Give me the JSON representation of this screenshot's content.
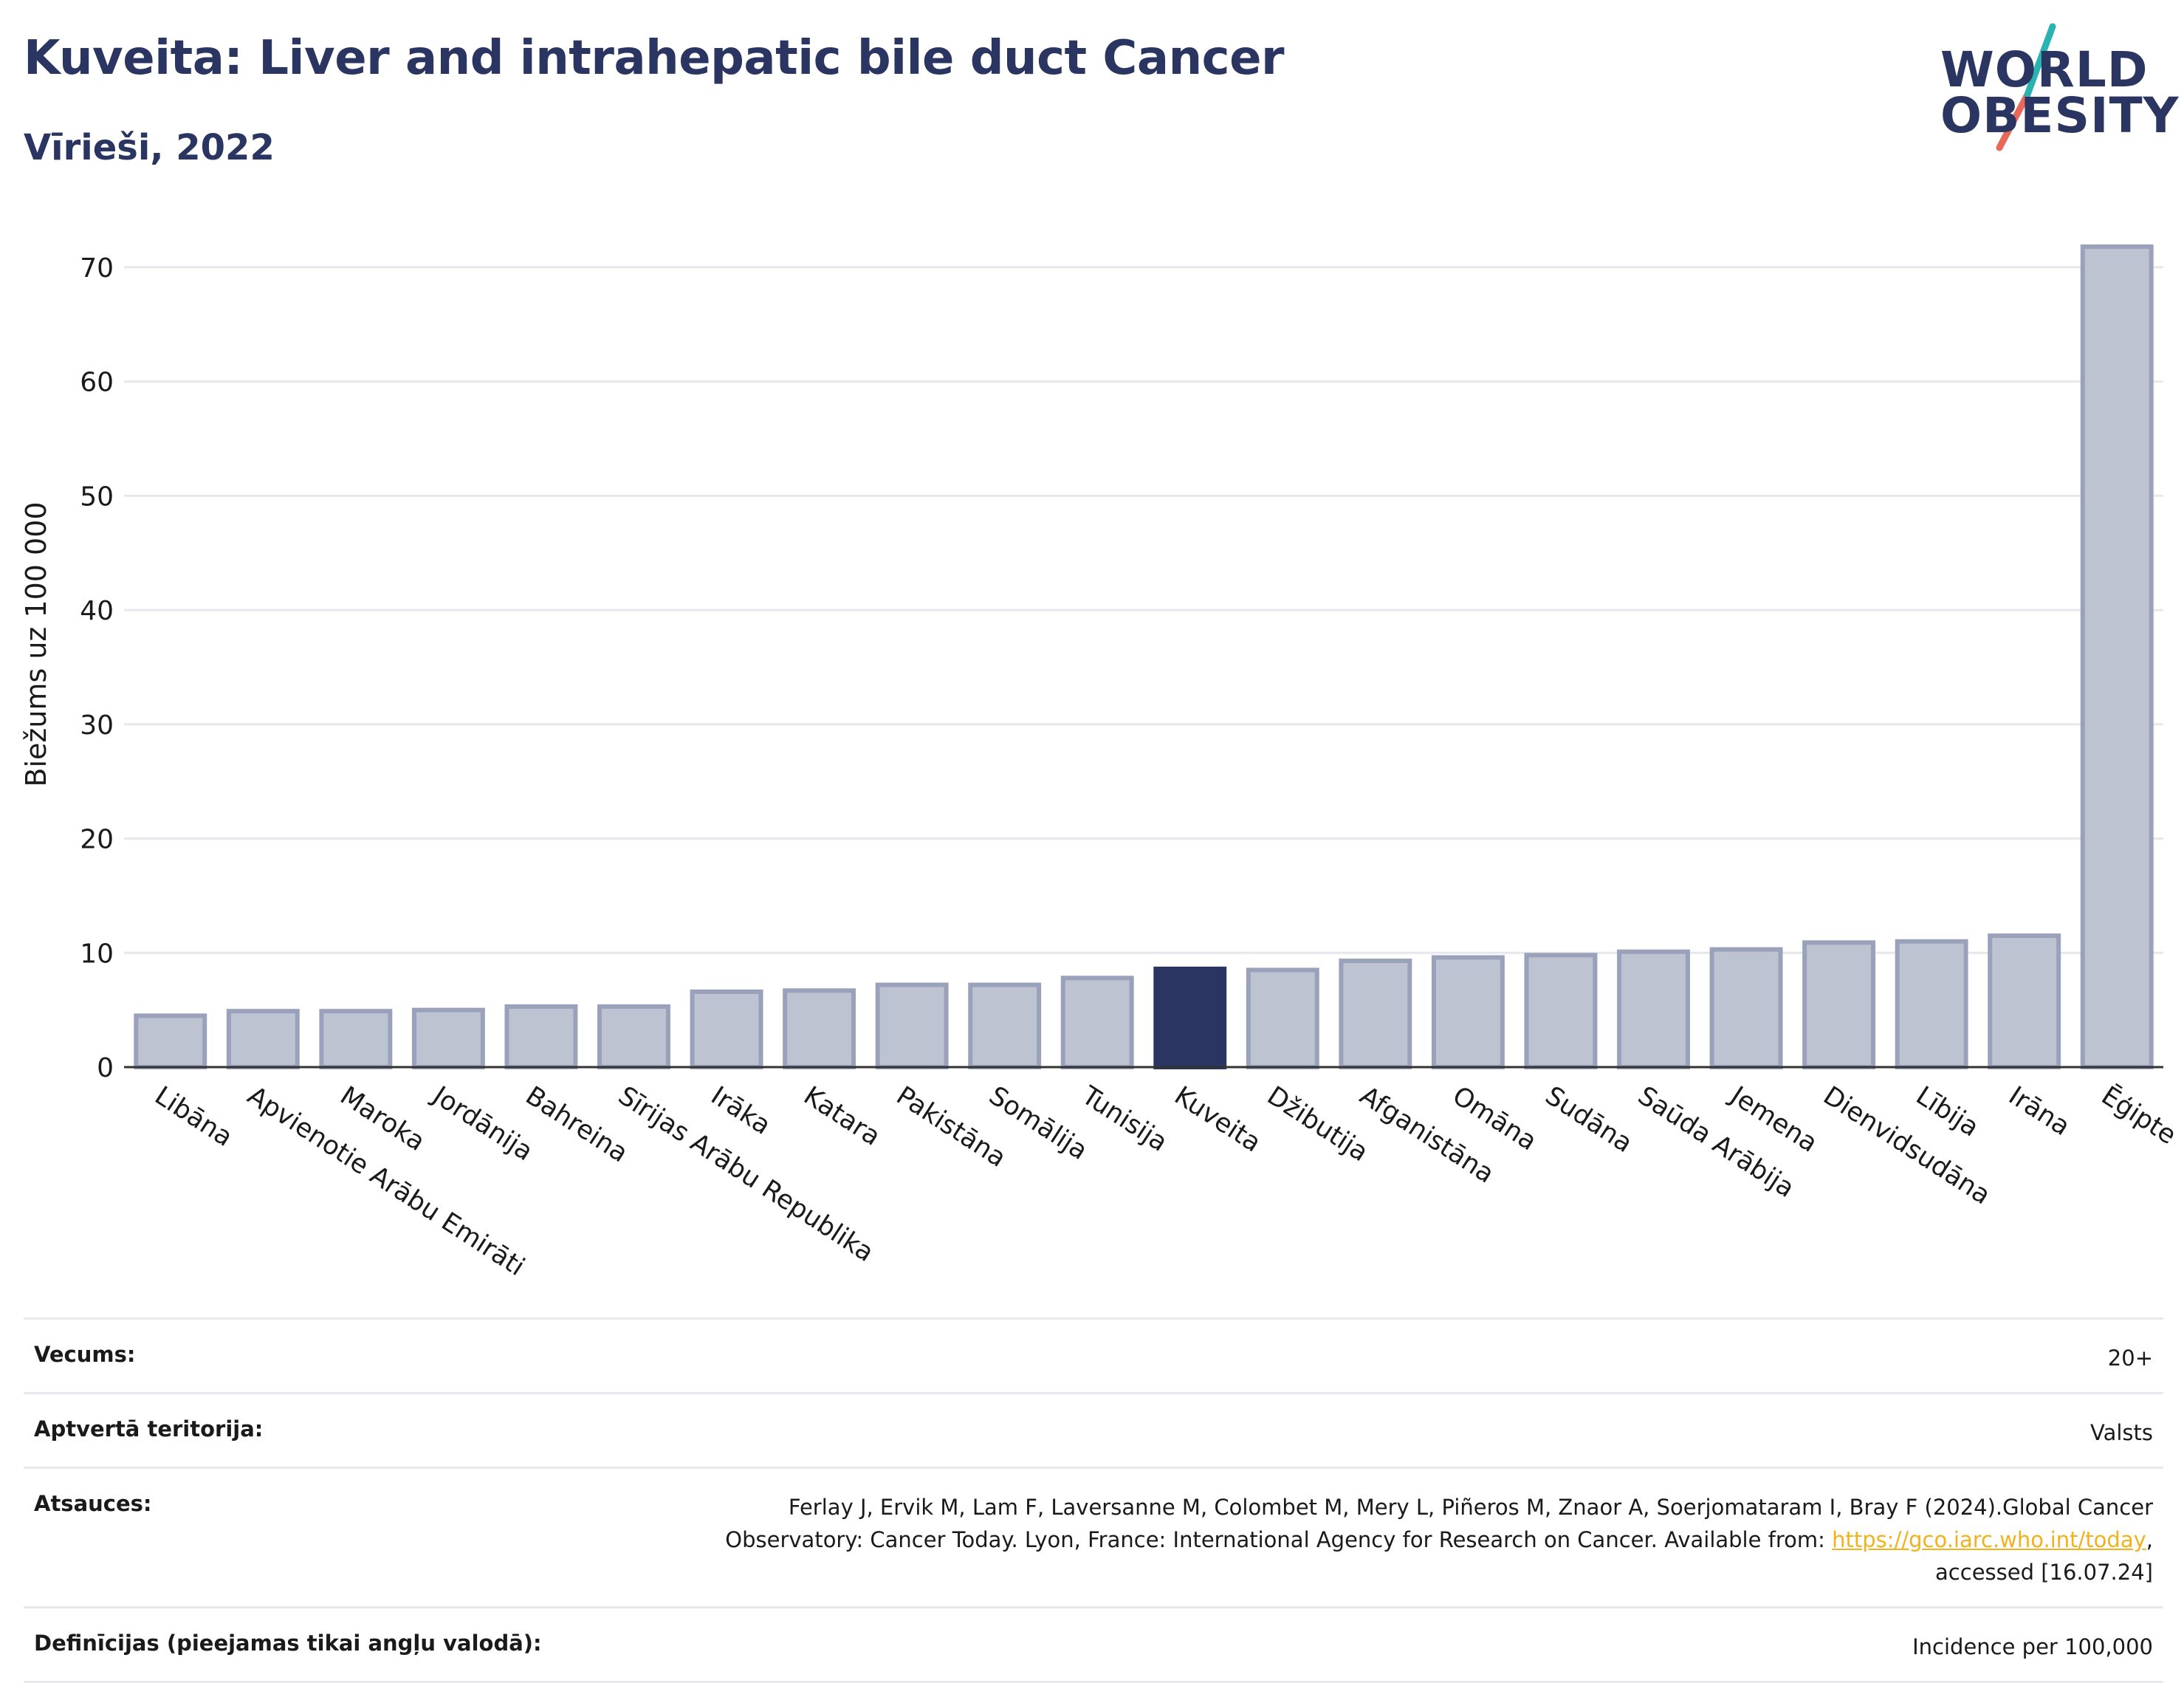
{
  "title": "Kuveita: Liver and intrahepatic bile duct Cancer",
  "subtitle": "Vīrieši, 2022",
  "logo": {
    "line1": "WORLD",
    "line2": "OBESITY",
    "accent_teal": "#2bb3b1",
    "accent_coral": "#e8685a"
  },
  "colors": {
    "bar": "#bec3d2",
    "bar_border": "#9aa1bb",
    "highlight": "#2a3561",
    "grid": "#e6e8ee"
  },
  "chart_data": {
    "type": "bar",
    "title": "Kuveita: Liver and intrahepatic bile duct Cancer",
    "subtitle": "Vīrieši, 2022",
    "xlabel": "",
    "ylabel": "Biežums uz 100 000",
    "ylim": [
      0,
      74
    ],
    "yticks": [
      0,
      10,
      20,
      30,
      40,
      50,
      60,
      70
    ],
    "grid": true,
    "highlight": "Kuveita",
    "categories": [
      "Libāna",
      "Apvienotie Arābu Emirāti",
      "Maroka",
      "Jordānija",
      "Bahreina",
      "Sīrijas Arābu Republika",
      "Irāka",
      "Katara",
      "Pakistāna",
      "Somālija",
      "Tunisija",
      "Kuveita",
      "Džibutija",
      "Afganistāna",
      "Omāna",
      "Sudāna",
      "Saūda Arābija",
      "Jemena",
      "Dienvidsudāna",
      "Lībija",
      "Irāna",
      "Ēģipte"
    ],
    "values": [
      4.5,
      4.9,
      4.9,
      5.0,
      5.3,
      5.3,
      6.6,
      6.7,
      7.2,
      7.2,
      7.8,
      8.6,
      8.5,
      9.3,
      9.6,
      9.8,
      10.1,
      10.3,
      10.9,
      11.0,
      11.5,
      71.8
    ]
  },
  "meta": {
    "rows": [
      {
        "key": "Vecums:",
        "value": "20+"
      },
      {
        "key": "Aptvertā teritorija:",
        "value": "Valsts"
      },
      {
        "key": "Atsauces:",
        "value_line1": "Ferlay J, Ervik M, Lam F, Laversanne M, Colombet M, Mery L, Piñeros M, Znaor A, Soerjomataram I, Bray F (2024).Global Cancer",
        "value_line2_pre": "Observatory: Cancer Today. Lyon, France: International Agency for Research on Cancer. Available from: ",
        "link": "https://gco.iarc.who.int/today",
        "value_line2_post": ",",
        "value_line3": "accessed [16.07.24]"
      },
      {
        "key": "Definīcijas (pieejamas tikai angļu valodā):",
        "value": "Incidence per 100,000"
      }
    ]
  }
}
